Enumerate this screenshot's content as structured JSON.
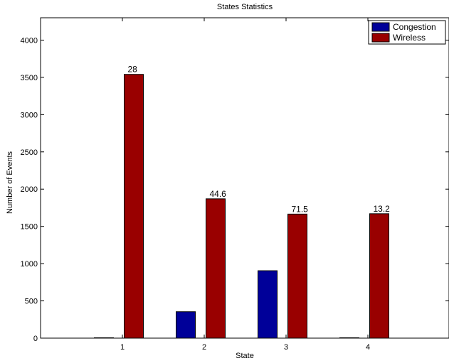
{
  "chart_data": {
    "type": "bar",
    "title": "States Statistics",
    "xlabel": "State",
    "ylabel": "Number of Events",
    "categories": [
      "1",
      "2",
      "3",
      "4"
    ],
    "ylim": [
      0,
      4300
    ],
    "yticks": [
      0,
      500,
      1000,
      1500,
      2000,
      2500,
      3000,
      3500,
      4000
    ],
    "grid": false,
    "legend_position": "top-right",
    "series": [
      {
        "name": "Congestion",
        "color": "#000099",
        "values": [
          5,
          355,
          905,
          5
        ]
      },
      {
        "name": "Wireless",
        "color": "#990000",
        "values": [
          3540,
          1870,
          1665,
          1670
        ],
        "labels": [
          "28",
          "44.6",
          "71.5",
          "13.2"
        ]
      }
    ]
  }
}
